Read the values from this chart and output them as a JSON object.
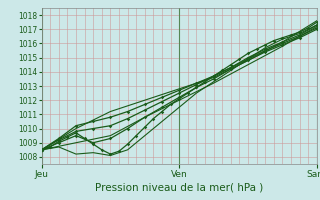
{
  "title": "Pression niveau de la mer( hPa )",
  "bg_color": "#cce8e8",
  "plot_bg": "#cce8e8",
  "line_color": "#1a5c1a",
  "ylim": [
    1007.5,
    1018.5
  ],
  "yticks": [
    1008,
    1009,
    1010,
    1011,
    1012,
    1013,
    1014,
    1015,
    1016,
    1017,
    1018
  ],
  "xtick_positions": [
    0,
    48,
    96
  ],
  "xtick_labels": [
    "Jeu",
    "Ven",
    "Sam"
  ],
  "total_hours": 96,
  "series": [
    [
      [
        0,
        1008.5
      ],
      [
        3,
        1008.7
      ],
      [
        6,
        1009.1
      ],
      [
        9,
        1009.4
      ],
      [
        12,
        1009.7
      ],
      [
        15,
        1009.3
      ],
      [
        18,
        1008.9
      ],
      [
        21,
        1008.5
      ],
      [
        24,
        1008.2
      ],
      [
        27,
        1008.4
      ],
      [
        30,
        1008.9
      ],
      [
        33,
        1009.5
      ],
      [
        36,
        1010.1
      ],
      [
        39,
        1010.7
      ],
      [
        42,
        1011.2
      ],
      [
        45,
        1011.7
      ],
      [
        48,
        1012.1
      ],
      [
        51,
        1012.5
      ],
      [
        54,
        1012.9
      ],
      [
        57,
        1013.3
      ],
      [
        60,
        1013.7
      ],
      [
        63,
        1014.1
      ],
      [
        66,
        1014.5
      ],
      [
        69,
        1014.9
      ],
      [
        72,
        1015.3
      ],
      [
        75,
        1015.6
      ],
      [
        78,
        1015.9
      ],
      [
        81,
        1016.2
      ],
      [
        84,
        1016.4
      ],
      [
        87,
        1016.6
      ],
      [
        90,
        1016.8
      ],
      [
        93,
        1017.1
      ],
      [
        96,
        1017.5
      ]
    ],
    [
      [
        0,
        1008.5
      ],
      [
        6,
        1009.0
      ],
      [
        12,
        1009.5
      ],
      [
        18,
        1009.0
      ],
      [
        24,
        1009.3
      ],
      [
        30,
        1010.0
      ],
      [
        36,
        1010.8
      ],
      [
        42,
        1011.5
      ],
      [
        48,
        1012.2
      ],
      [
        54,
        1012.9
      ],
      [
        60,
        1013.5
      ],
      [
        66,
        1014.2
      ],
      [
        72,
        1014.8
      ],
      [
        78,
        1015.4
      ],
      [
        84,
        1015.9
      ],
      [
        90,
        1016.4
      ],
      [
        96,
        1017.0
      ]
    ],
    [
      [
        0,
        1008.5
      ],
      [
        6,
        1009.3
      ],
      [
        12,
        1010.2
      ],
      [
        18,
        1010.5
      ],
      [
        24,
        1010.8
      ],
      [
        30,
        1011.2
      ],
      [
        36,
        1011.7
      ],
      [
        42,
        1012.2
      ],
      [
        48,
        1012.7
      ],
      [
        54,
        1013.2
      ],
      [
        60,
        1013.7
      ],
      [
        66,
        1014.3
      ],
      [
        72,
        1014.9
      ],
      [
        78,
        1015.5
      ],
      [
        84,
        1016.0
      ],
      [
        90,
        1016.5
      ],
      [
        96,
        1017.1
      ]
    ],
    [
      [
        0,
        1008.5
      ],
      [
        6,
        1009.2
      ],
      [
        12,
        1009.8
      ],
      [
        18,
        1010.0
      ],
      [
        24,
        1010.2
      ],
      [
        30,
        1010.7
      ],
      [
        36,
        1011.3
      ],
      [
        42,
        1011.9
      ],
      [
        48,
        1012.5
      ],
      [
        54,
        1013.1
      ],
      [
        60,
        1013.7
      ],
      [
        66,
        1014.3
      ],
      [
        72,
        1015.0
      ],
      [
        78,
        1015.6
      ],
      [
        84,
        1016.1
      ],
      [
        90,
        1016.6
      ],
      [
        96,
        1017.3
      ]
    ],
    [
      [
        0,
        1008.5
      ],
      [
        12,
        1009.0
      ],
      [
        24,
        1009.5
      ],
      [
        36,
        1010.8
      ],
      [
        48,
        1012.0
      ],
      [
        60,
        1013.2
      ],
      [
        72,
        1014.5
      ],
      [
        84,
        1015.8
      ],
      [
        96,
        1017.2
      ]
    ],
    [
      [
        0,
        1008.5
      ],
      [
        12,
        1010.0
      ],
      [
        24,
        1011.2
      ],
      [
        36,
        1012.0
      ],
      [
        48,
        1012.8
      ],
      [
        60,
        1013.6
      ],
      [
        72,
        1014.8
      ],
      [
        84,
        1016.1
      ],
      [
        96,
        1017.6
      ]
    ],
    [
      [
        0,
        1008.5
      ],
      [
        6,
        1008.7
      ],
      [
        12,
        1008.2
      ],
      [
        18,
        1008.3
      ],
      [
        24,
        1008.1
      ],
      [
        30,
        1008.5
      ],
      [
        36,
        1009.5
      ],
      [
        42,
        1010.5
      ],
      [
        48,
        1011.5
      ],
      [
        54,
        1012.5
      ],
      [
        60,
        1013.3
      ],
      [
        66,
        1014.1
      ],
      [
        72,
        1014.9
      ],
      [
        78,
        1015.7
      ],
      [
        84,
        1016.3
      ],
      [
        90,
        1016.7
      ],
      [
        96,
        1017.3
      ]
    ]
  ],
  "has_markers": [
    true,
    true,
    true,
    true,
    false,
    false,
    false
  ],
  "linewidths": [
    0.9,
    0.9,
    0.9,
    0.9,
    0.8,
    0.8,
    0.8
  ]
}
